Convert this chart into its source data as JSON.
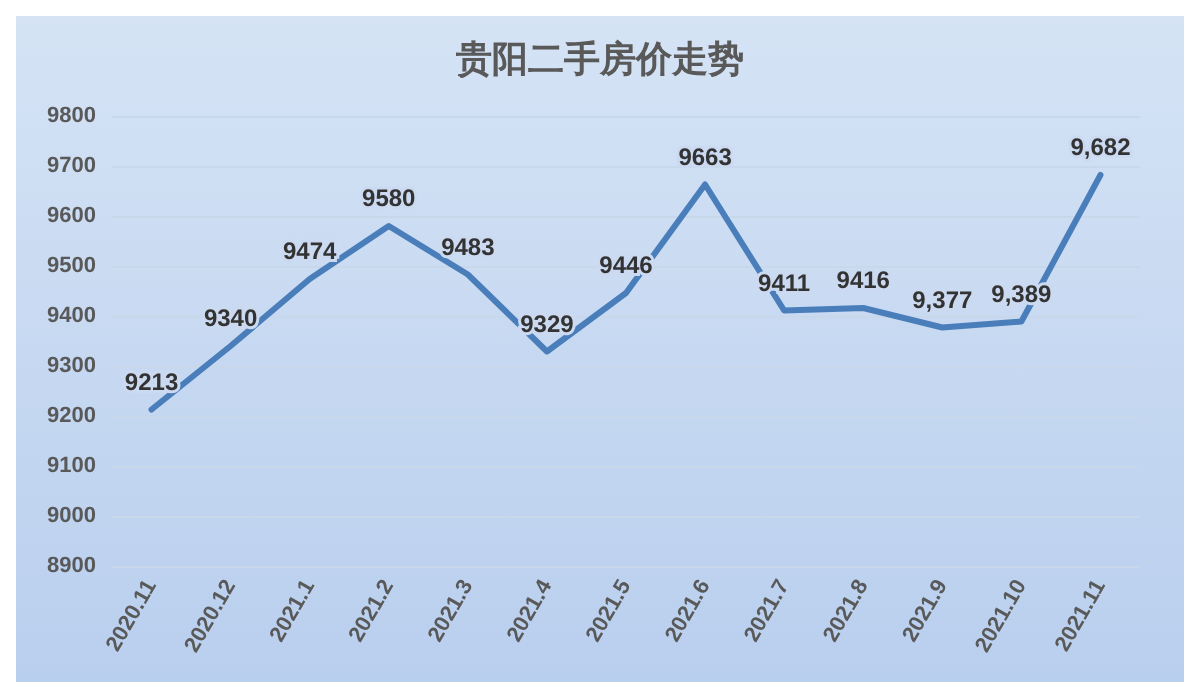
{
  "chart_data": {
    "type": "line",
    "title": "贵阳二手房价走势",
    "categories": [
      "2020.11",
      "2020.12",
      "2021.1",
      "2021.2",
      "2021.3",
      "2021.4",
      "2021.5",
      "2021.6",
      "2021.7",
      "2021.8",
      "2021.9",
      "2021.10",
      "2021.11"
    ],
    "series": [
      {
        "color": "#4a7ebb",
        "values": [
          9213,
          9340,
          9474,
          9580,
          9483,
          9329,
          9446,
          9663,
          9411,
          9416,
          9377,
          9389,
          9682
        ],
        "value_labels": [
          "9213",
          "9340",
          "9474",
          "9580",
          "9483",
          "9329",
          "9446",
          "9663",
          "9411",
          "9416",
          "9,377",
          "9,389",
          "9,682"
        ]
      }
    ],
    "ylim": [
      8900,
      9800
    ],
    "yticks": [
      8900,
      9000,
      9100,
      9200,
      9300,
      9400,
      9500,
      9600,
      9700,
      9800
    ],
    "grid": "y",
    "marker": "none",
    "line_style": "solid"
  }
}
